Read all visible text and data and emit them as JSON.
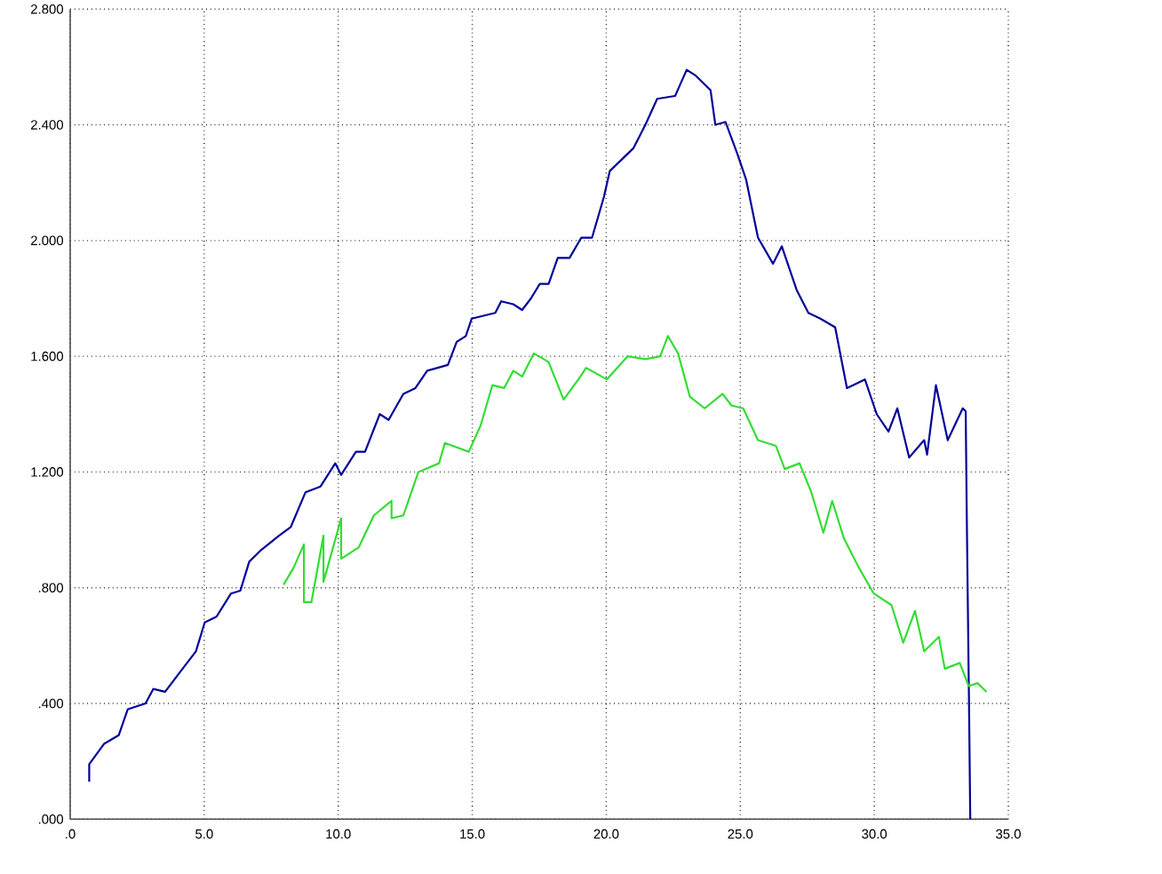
{
  "chart_data": {
    "type": "line",
    "xlim": [
      0,
      35
    ],
    "ylim": [
      0,
      2.8
    ],
    "xticks": [
      {
        "value": 0,
        "label": ".0"
      },
      {
        "value": 5,
        "label": "5.0"
      },
      {
        "value": 10,
        "label": "10.0"
      },
      {
        "value": 15,
        "label": "15.0"
      },
      {
        "value": 20,
        "label": "20.0"
      },
      {
        "value": 25,
        "label": "25.0"
      },
      {
        "value": 30,
        "label": "30.0"
      },
      {
        "value": 35,
        "label": "35.0"
      }
    ],
    "yticks": [
      {
        "value": 0,
        "label": ".000"
      },
      {
        "value": 0.4,
        "label": ".400"
      },
      {
        "value": 0.8,
        "label": ".800"
      },
      {
        "value": 1.2,
        "label": "1.200"
      },
      {
        "value": 1.6,
        "label": "1.600"
      },
      {
        "value": 2.0,
        "label": "2.000"
      },
      {
        "value": 2.4,
        "label": "2.400"
      },
      {
        "value": 2.8,
        "label": "2.800"
      }
    ],
    "grid": true,
    "marker": "none",
    "line_style": "solid",
    "series": [
      {
        "color": "#000099",
        "x": [
          0.71,
          0.71,
          1.26,
          1.81,
          2.15,
          2.81,
          3.1,
          3.54,
          4.03,
          4.69,
          5.02,
          5.46,
          6.0,
          6.35,
          6.68,
          7.12,
          7.79,
          8.23,
          8.78,
          9.34,
          9.89,
          10.11,
          10.66,
          11.0,
          11.55,
          11.88,
          12.43,
          12.88,
          13.32,
          14.09,
          14.42,
          14.76,
          14.98,
          15.86,
          16.08,
          16.53,
          16.86,
          17.19,
          17.52,
          17.85,
          18.19,
          18.63,
          19.07,
          19.47,
          19.91,
          20.13,
          21.02,
          21.46,
          21.9,
          22.57,
          23.0,
          23.34,
          23.89,
          24.07,
          24.45,
          24.89,
          25.22,
          25.66,
          26.22,
          26.55,
          27.1,
          27.54,
          27.99,
          28.54,
          28.98,
          29.65,
          30.09,
          30.53,
          30.86,
          31.3,
          31.86,
          31.97,
          32.3,
          32.74,
          33.3,
          33.41,
          33.45,
          33.54,
          33.58
        ],
        "values": [
          0.13,
          0.19,
          0.26,
          0.29,
          0.38,
          0.4,
          0.45,
          0.44,
          0.5,
          0.58,
          0.68,
          0.7,
          0.78,
          0.79,
          0.89,
          0.93,
          0.98,
          1.01,
          1.13,
          1.15,
          1.23,
          1.19,
          1.27,
          1.27,
          1.4,
          1.38,
          1.47,
          1.49,
          1.55,
          1.57,
          1.65,
          1.67,
          1.73,
          1.75,
          1.79,
          1.78,
          1.76,
          1.8,
          1.85,
          1.85,
          1.94,
          1.94,
          2.01,
          2.01,
          2.15,
          2.24,
          2.32,
          2.4,
          2.49,
          2.5,
          2.59,
          2.57,
          2.52,
          2.4,
          2.41,
          2.3,
          2.21,
          2.01,
          1.92,
          1.98,
          1.83,
          1.75,
          1.73,
          1.7,
          1.49,
          1.52,
          1.4,
          1.34,
          1.42,
          1.25,
          1.31,
          1.26,
          1.5,
          1.31,
          1.42,
          1.41,
          1.05,
          0.35,
          0.0
        ]
      },
      {
        "color": "#33dd33",
        "x": [
          7.96,
          8.34,
          8.72,
          8.72,
          9.0,
          9.45,
          9.45,
          10.11,
          10.11,
          10.77,
          11.33,
          11.99,
          11.99,
          12.43,
          12.99,
          13.76,
          13.98,
          14.87,
          15.31,
          15.75,
          16.19,
          16.53,
          16.86,
          17.3,
          17.85,
          18.41,
          18.96,
          19.25,
          20.02,
          20.8,
          21.46,
          22.01,
          22.3,
          22.68,
          23.12,
          23.67,
          24.34,
          24.67,
          25.11,
          25.66,
          26.33,
          26.66,
          27.21,
          27.65,
          28.1,
          28.43,
          28.87,
          29.42,
          29.98,
          30.64,
          31.08,
          31.52,
          31.86,
          32.41,
          32.63,
          33.19,
          33.52,
          33.85,
          34.19
        ],
        "values": [
          0.81,
          0.87,
          0.95,
          0.75,
          0.75,
          0.98,
          0.82,
          1.04,
          0.9,
          0.94,
          1.05,
          1.1,
          1.04,
          1.05,
          1.2,
          1.23,
          1.3,
          1.27,
          1.36,
          1.5,
          1.49,
          1.55,
          1.53,
          1.61,
          1.58,
          1.45,
          1.52,
          1.56,
          1.52,
          1.6,
          1.59,
          1.6,
          1.67,
          1.61,
          1.46,
          1.42,
          1.47,
          1.43,
          1.42,
          1.31,
          1.29,
          1.21,
          1.23,
          1.13,
          0.99,
          1.1,
          0.97,
          0.87,
          0.78,
          0.74,
          0.61,
          0.72,
          0.58,
          0.63,
          0.52,
          0.54,
          0.46,
          0.47,
          0.44
        ]
      }
    ]
  }
}
